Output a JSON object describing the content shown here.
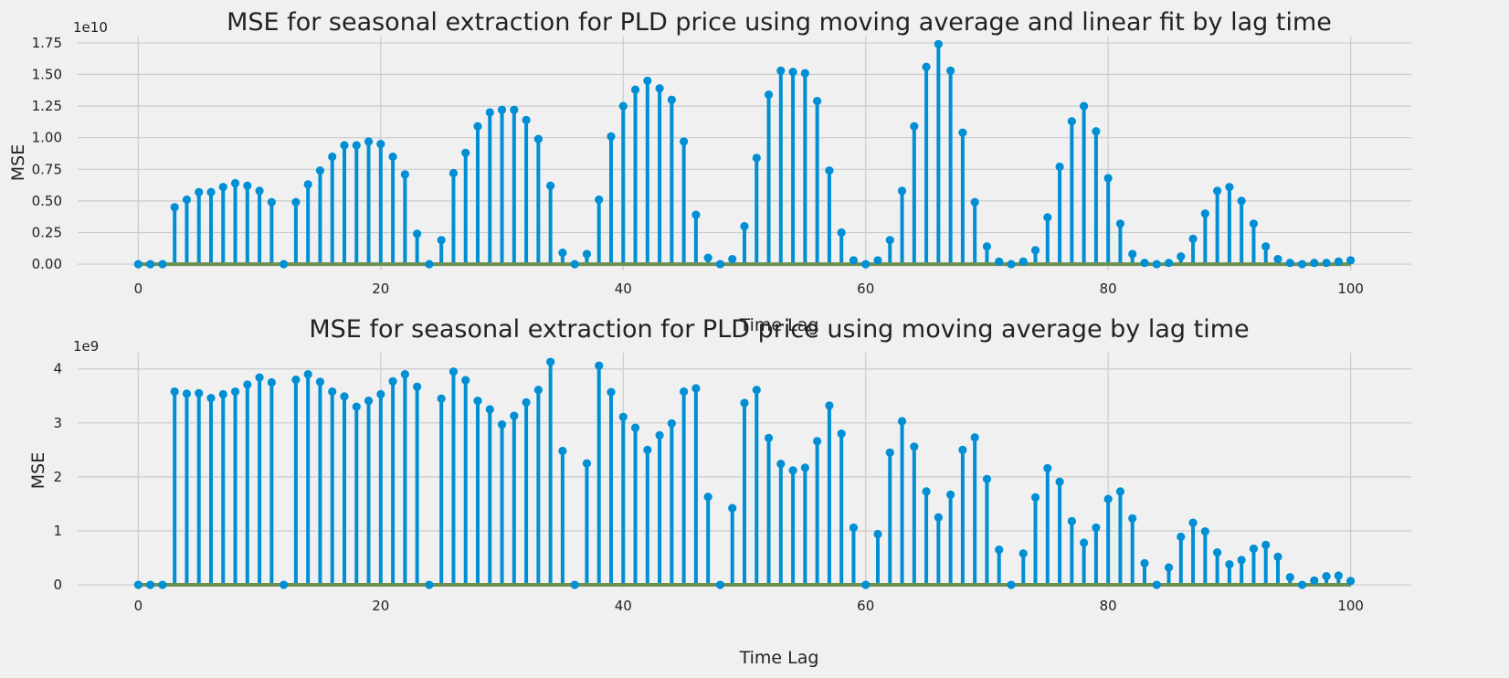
{
  "chart_data": [
    {
      "type": "stem",
      "title": "MSE for seasonal extraction for PLD price using moving average and linear fit by lag time",
      "xlabel": "Time Lag",
      "ylabel": "MSE",
      "offset_text": "1e10",
      "scale": 10000000000,
      "xlim": [
        -5,
        105
      ],
      "ylim": [
        -0.05,
        1.8
      ],
      "xticks": [
        0,
        20,
        40,
        60,
        80,
        100
      ],
      "xtick_labels": [
        "0",
        "20",
        "40",
        "60",
        "80",
        "100"
      ],
      "yticks": [
        0,
        0.25,
        0.5,
        0.75,
        1.0,
        1.25,
        1.5,
        1.75
      ],
      "ytick_labels": [
        "0.00",
        "0.25",
        "0.50",
        "0.75",
        "1.00",
        "1.25",
        "1.50",
        "1.75"
      ],
      "grid": true,
      "x": [
        0,
        1,
        2,
        3,
        4,
        5,
        6,
        7,
        8,
        9,
        10,
        11,
        12,
        13,
        14,
        15,
        16,
        17,
        18,
        19,
        20,
        21,
        22,
        23,
        24,
        25,
        26,
        27,
        28,
        29,
        30,
        31,
        32,
        33,
        34,
        35,
        36,
        37,
        38,
        39,
        40,
        41,
        42,
        43,
        44,
        45,
        46,
        47,
        48,
        49,
        50,
        51,
        52,
        53,
        54,
        55,
        56,
        57,
        58,
        59,
        60,
        61,
        62,
        63,
        64,
        65,
        66,
        67,
        68,
        69,
        70,
        71,
        72,
        73,
        74,
        75,
        76,
        77,
        78,
        79,
        80,
        81,
        82,
        83,
        84,
        85,
        86,
        87,
        88,
        89,
        90,
        91,
        92,
        93,
        94,
        95,
        96,
        97,
        98,
        99,
        100
      ],
      "values": [
        0,
        0,
        0,
        0.45,
        0.51,
        0.57,
        0.57,
        0.61,
        0.64,
        0.62,
        0.58,
        0.49,
        0,
        0.49,
        0.63,
        0.74,
        0.85,
        0.94,
        0.94,
        0.97,
        0.95,
        0.85,
        0.71,
        0.24,
        0,
        0.19,
        0.72,
        0.88,
        1.09,
        1.2,
        1.22,
        1.22,
        1.14,
        0.99,
        0.62,
        0.09,
        0,
        0.08,
        0.51,
        1.01,
        1.25,
        1.38,
        1.45,
        1.39,
        1.3,
        0.97,
        0.39,
        0.05,
        0,
        0.04,
        0.3,
        0.84,
        1.34,
        1.53,
        1.52,
        1.51,
        1.29,
        0.74,
        0.25,
        0.03,
        0,
        0.03,
        0.19,
        0.58,
        1.09,
        1.56,
        1.74,
        1.53,
        1.04,
        0.49,
        0.14,
        0.02,
        0,
        0.02,
        0.11,
        0.37,
        0.77,
        1.13,
        1.25,
        1.05,
        0.68,
        0.32,
        0.08,
        0.01,
        0,
        0.01,
        0.06,
        0.2,
        0.4,
        0.58,
        0.61,
        0.5,
        0.32,
        0.14,
        0.04,
        0.01,
        0,
        0.01,
        0.01,
        0.02,
        0.03
      ],
      "colors": {
        "stem": "#008fd5",
        "baseline": "#6d904f"
      }
    },
    {
      "type": "stem",
      "title": "MSE for seasonal extraction for PLD price using moving average by lag time",
      "xlabel": "Time Lag",
      "ylabel": "MSE",
      "offset_text": "1e9",
      "scale": 1000000000,
      "xlim": [
        -5,
        105
      ],
      "ylim": [
        -0.05,
        4.3
      ],
      "xticks": [
        0,
        20,
        40,
        60,
        80,
        100
      ],
      "xtick_labels": [
        "0",
        "20",
        "40",
        "60",
        "80",
        "100"
      ],
      "yticks": [
        0,
        1,
        2,
        3,
        4
      ],
      "ytick_labels": [
        "0",
        "1",
        "2",
        "3",
        "4"
      ],
      "grid": true,
      "x": [
        0,
        1,
        2,
        3,
        4,
        5,
        6,
        7,
        8,
        9,
        10,
        11,
        12,
        13,
        14,
        15,
        16,
        17,
        18,
        19,
        20,
        21,
        22,
        23,
        24,
        25,
        26,
        27,
        28,
        29,
        30,
        31,
        32,
        33,
        34,
        35,
        36,
        37,
        38,
        39,
        40,
        41,
        42,
        43,
        44,
        45,
        46,
        47,
        48,
        49,
        50,
        51,
        52,
        53,
        54,
        55,
        56,
        57,
        58,
        59,
        60,
        61,
        62,
        63,
        64,
        65,
        66,
        67,
        68,
        69,
        70,
        71,
        72,
        73,
        74,
        75,
        76,
        77,
        78,
        79,
        80,
        81,
        82,
        83,
        84,
        85,
        86,
        87,
        88,
        89,
        90,
        91,
        92,
        93,
        94,
        95,
        96,
        97,
        98,
        99,
        100
      ],
      "values": [
        0,
        0,
        0,
        3.58,
        3.54,
        3.55,
        3.46,
        3.53,
        3.58,
        3.71,
        3.84,
        3.75,
        0,
        3.8,
        3.9,
        3.76,
        3.58,
        3.49,
        3.3,
        3.41,
        3.53,
        3.77,
        3.9,
        3.67,
        0,
        3.45,
        3.95,
        3.79,
        3.41,
        3.25,
        2.97,
        3.13,
        3.38,
        3.61,
        4.13,
        2.48,
        0,
        2.25,
        4.06,
        3.57,
        3.11,
        2.91,
        2.5,
        2.77,
        2.99,
        3.58,
        3.64,
        1.63,
        0,
        1.42,
        3.37,
        3.61,
        2.72,
        2.24,
        2.12,
        2.17,
        2.66,
        3.32,
        2.8,
        1.06,
        0,
        0.94,
        2.45,
        3.03,
        2.56,
        1.73,
        1.25,
        1.67,
        2.5,
        2.73,
        1.96,
        0.65,
        0,
        0.58,
        1.62,
        2.16,
        1.91,
        1.18,
        0.78,
        1.06,
        1.59,
        1.73,
        1.23,
        0.4,
        0,
        0.32,
        0.89,
        1.15,
        0.99,
        0.6,
        0.38,
        0.46,
        0.67,
        0.74,
        0.52,
        0.14,
        0,
        0.08,
        0.16,
        0.17,
        0.07
      ],
      "colors": {
        "stem": "#008fd5",
        "baseline": "#6d904f"
      }
    }
  ]
}
